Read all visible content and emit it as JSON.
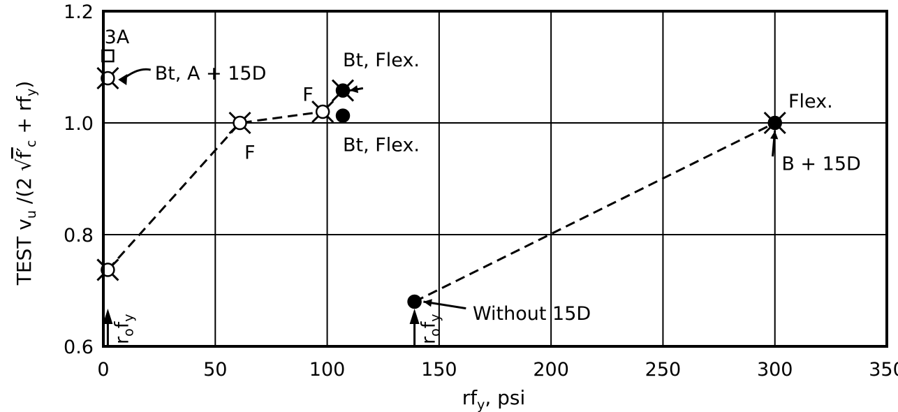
{
  "chart_data": {
    "type": "scatter",
    "title": "",
    "xlabel": "rf",
    "xlabel_sub": "y",
    "xlabel_unit": ", psi",
    "ylabel": "TEST v",
    "ylabel_sub": "u",
    "ylabel_mid": " /(2 √",
    "ylabel_fc": "f′",
    "ylabel_fc_sub": "c",
    "ylabel_tail": " + rf",
    "ylabel_tail_sub": "y",
    "ylabel_close": ")",
    "xlim": [
      0,
      350
    ],
    "ylim": [
      0.6,
      1.2
    ],
    "x_ticks": [
      0,
      50,
      100,
      150,
      200,
      250,
      300,
      350
    ],
    "x_tick_labels": [
      "0",
      "50",
      "100",
      "150",
      "200",
      "250",
      "300",
      "350"
    ],
    "y_ticks": [
      0.6,
      0.8,
      1.0,
      1.2
    ],
    "y_tick_labels": [
      "0.6",
      "0.8",
      "1.0",
      "1.2"
    ],
    "grid": true,
    "points": [
      {
        "x": 2,
        "y": 1.12,
        "marker": "open-square"
      },
      {
        "x": 2,
        "y": 1.08,
        "marker": "open-circle-x"
      },
      {
        "x": 2,
        "y": 0.737,
        "marker": "open-circle-x"
      },
      {
        "x": 61,
        "y": 1.0,
        "marker": "open-circle-x"
      },
      {
        "x": 98,
        "y": 1.02,
        "marker": "open-circle-x"
      },
      {
        "x": 107,
        "y": 1.058,
        "marker": "filled-circle-x"
      },
      {
        "x": 107,
        "y": 1.013,
        "marker": "filled-circle"
      },
      {
        "x": 139,
        "y": 0.68,
        "marker": "filled-circle"
      },
      {
        "x": 300,
        "y": 1.0,
        "marker": "filled-circle-x"
      }
    ],
    "dashed_lines": [
      [
        [
          2,
          0.737
        ],
        [
          61,
          1.0
        ],
        [
          98,
          1.02
        ]
      ],
      [
        [
          139,
          0.68
        ],
        [
          300,
          1.0
        ]
      ]
    ],
    "annotations": [
      {
        "text": "3A",
        "x": 0.5,
        "y": 1.155
      },
      {
        "text": "Bt, A + 15D",
        "x": 23,
        "y": 1.09,
        "arrow_to": [
          6,
          1.08
        ]
      },
      {
        "text": "Bt, Flex.",
        "x": 107,
        "y": 1.114
      },
      {
        "text": "F",
        "x": 89,
        "y": 1.052
      },
      {
        "text": "Bt, Flex.",
        "x": 107,
        "y": 0.962
      },
      {
        "text": "F",
        "x": 63,
        "y": 0.948
      },
      {
        "text": "Flex.",
        "x": 306,
        "y": 1.04
      },
      {
        "text": "B + 15D",
        "x": 303,
        "y": 0.928
      },
      {
        "text": "Without 15D",
        "x": 165,
        "y": 0.66
      }
    ],
    "vertical_markers": [
      {
        "x": 2,
        "label": "r",
        "label_sub": "o",
        "label_mid": "f",
        "label_mid_sub": "y"
      },
      {
        "x": 139,
        "label": "r",
        "label_sub": "o",
        "label_mid": "f",
        "label_mid_sub": "y"
      }
    ]
  }
}
